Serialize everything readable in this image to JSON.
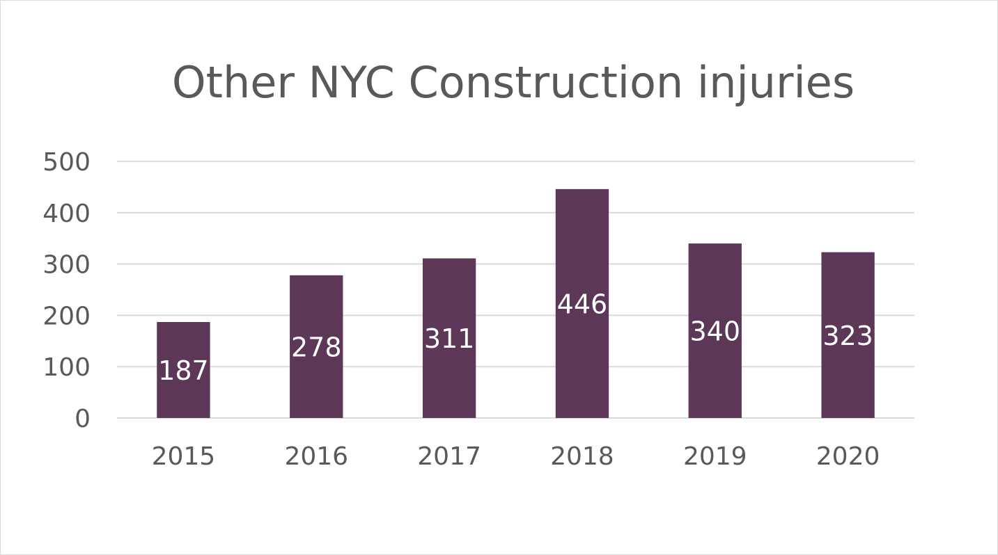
{
  "chart_data": {
    "type": "bar",
    "title": "Other NYC Construction injuries",
    "categories": [
      "2015",
      "2016",
      "2017",
      "2018",
      "2019",
      "2020"
    ],
    "values": [
      187,
      278,
      311,
      446,
      340,
      323
    ],
    "data_labels": [
      "187",
      "278",
      "311",
      "446",
      "340",
      "323"
    ],
    "y_ticks": [
      "0",
      "100",
      "200",
      "300",
      "400",
      "500"
    ],
    "ylim": [
      0,
      500
    ],
    "grid": true,
    "legend": "none",
    "bar_color": "#5c3758",
    "label_color": "#ffffff"
  }
}
